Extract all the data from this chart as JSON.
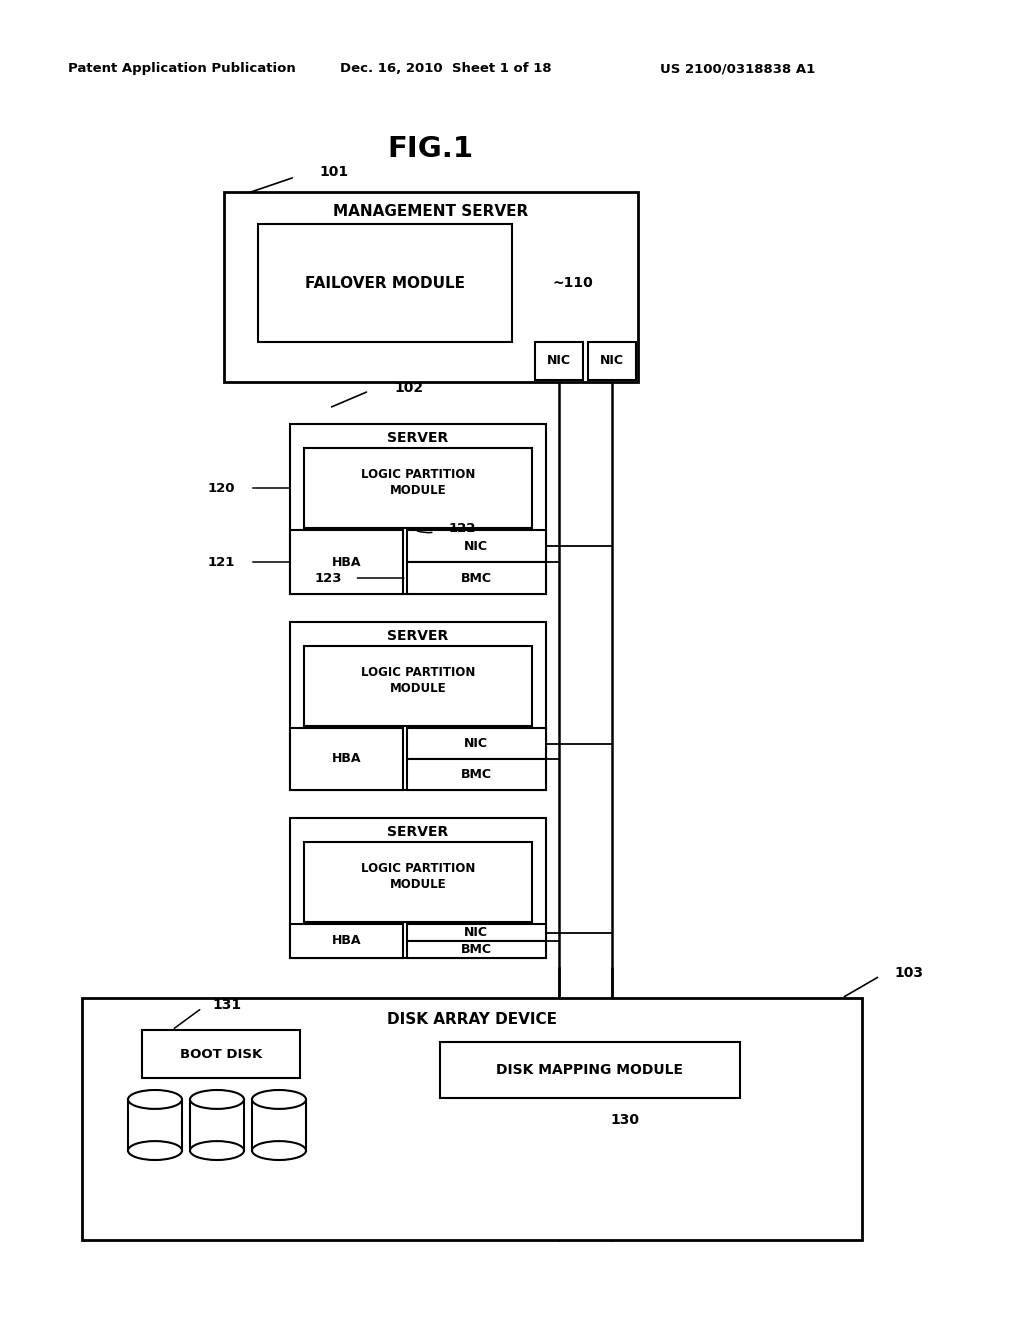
{
  "bg_color": "#ffffff",
  "header_left": "Patent Application Publication",
  "header_mid": "Dec. 16, 2010  Sheet 1 of 18",
  "header_right": "US 2100/0318838 A1",
  "fig_title": "FIG.1",
  "mgmt_server_label": "MANAGEMENT SERVER",
  "failover_module_label": "FAILOVER MODULE",
  "nic_label": "NIC",
  "server_label": "SERVER",
  "lpm_label1": "LOGIC PARTITION",
  "lpm_label2": "MODULE",
  "hba_label": "HBA",
  "bmc_label": "BMC",
  "disk_array_label": "DISK ARRAY DEVICE",
  "boot_disk_label": "BOOT DISK",
  "disk_mapping_label": "DISK MAPPING MODULE",
  "ref_101": "101",
  "ref_102": "102",
  "ref_103": "103",
  "ref_110": "~110",
  "ref_120": "120",
  "ref_121": "121",
  "ref_122": "122",
  "ref_123": "123",
  "ref_130": "130",
  "ref_131": "131"
}
